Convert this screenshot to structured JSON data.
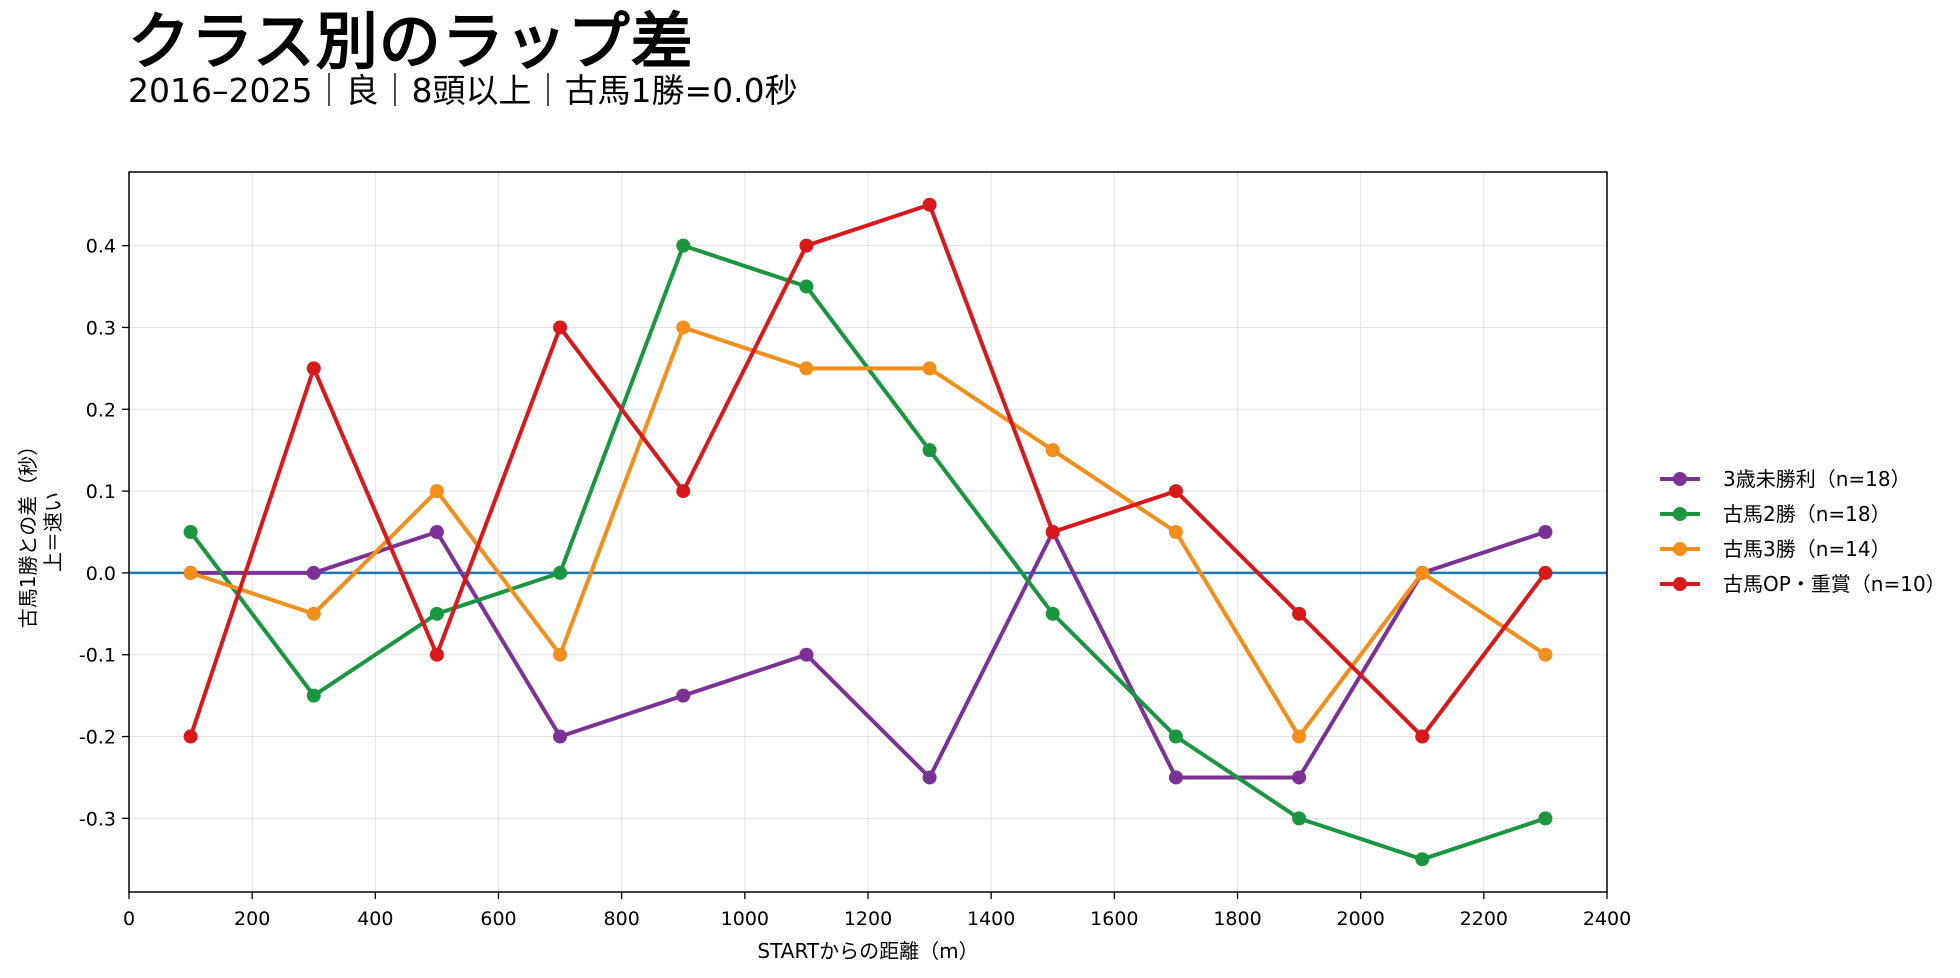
{
  "chart_data": {
    "type": "line",
    "title": "クラス別のラップ差",
    "subtitle": "2016–2025｜良｜8頭以上｜古馬1勝=0.0秒",
    "xlabel": "STARTからの距離（m）",
    "ylabel_line1": "古馬1勝との差（秒）",
    "ylabel_line2": "上＝速い",
    "xlim": [
      0,
      2400
    ],
    "ylim": [
      -0.39,
      0.49
    ],
    "xticks": [
      0,
      200,
      400,
      600,
      800,
      1000,
      1200,
      1400,
      1600,
      1800,
      2000,
      2200,
      2400
    ],
    "yticks": [
      0.4,
      0.3,
      0.2,
      0.1,
      0.0,
      -0.1,
      -0.2,
      -0.3
    ],
    "ytick_labels": [
      "0.4",
      "0.3",
      "0.2",
      "0.1",
      "0.0",
      "-0.1",
      "-0.2",
      "-0.3"
    ],
    "grid": true,
    "reference_line": {
      "y": 0.0,
      "color": "#1f77b4"
    },
    "legend_position": "right",
    "x": [
      100,
      300,
      500,
      700,
      900,
      1100,
      1300,
      1500,
      1700,
      1900,
      2100,
      2300
    ],
    "series": [
      {
        "name": "3歳未勝利（n=18）",
        "color": "#7b3294",
        "values": [
          0.0,
          0.0,
          0.05,
          -0.2,
          -0.15,
          -0.1,
          -0.25,
          0.05,
          -0.25,
          -0.25,
          0.0,
          0.05
        ]
      },
      {
        "name": "古馬2勝（n=18）",
        "color": "#1a9641",
        "values": [
          0.05,
          -0.15,
          -0.05,
          0.0,
          0.4,
          0.35,
          0.15,
          -0.05,
          -0.2,
          -0.3,
          -0.35,
          -0.3
        ]
      },
      {
        "name": "古馬3勝（n=14）",
        "color": "#f28e1c",
        "values": [
          0.0,
          -0.05,
          0.1,
          -0.1,
          0.3,
          0.25,
          0.25,
          0.15,
          0.05,
          -0.2,
          0.0,
          -0.1
        ]
      },
      {
        "name": "古馬OP・重賞（n=10）",
        "color": "#d7191c",
        "values": [
          -0.2,
          0.25,
          -0.1,
          0.3,
          0.1,
          0.4,
          0.45,
          0.05,
          0.1,
          -0.05,
          -0.2,
          0.0
        ]
      }
    ]
  }
}
